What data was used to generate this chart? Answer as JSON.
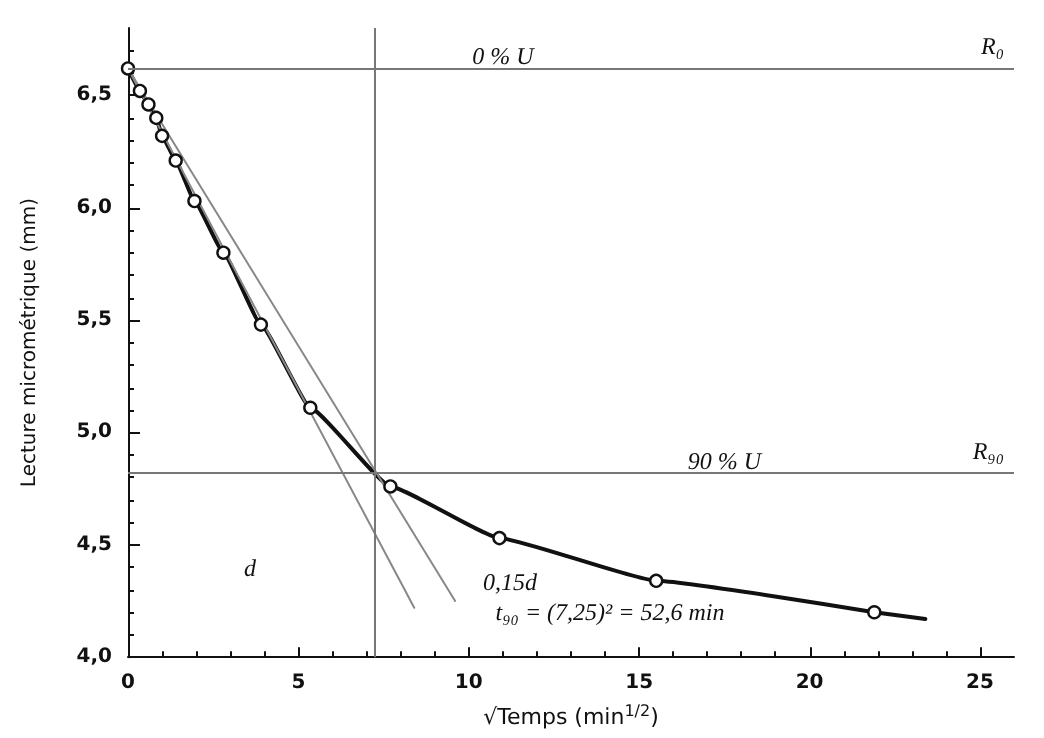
{
  "chart_data": {
    "type": "line",
    "xlabel": "√Temps (min$^{1/2}$)",
    "ylabel": "Lecture micrométrique (mm)",
    "xlim": [
      0,
      26
    ],
    "xticks": [
      0,
      5,
      10,
      15,
      20,
      25
    ],
    "ylim": [
      4,
      6.8
    ],
    "yticks": [
      {
        "value": 4,
        "label": "4,0"
      },
      {
        "value": 4.5,
        "label": "4,5"
      },
      {
        "value": 5,
        "label": "5,0"
      },
      {
        "value": 5.5,
        "label": "5,5"
      },
      {
        "value": 6,
        "label": "6,0"
      },
      {
        "value": 6.5,
        "label": "6,5"
      }
    ],
    "series": [
      {
        "color": "#111111",
        "marker": "circle",
        "x": [
          0,
          0.35,
          0.6,
          0.83,
          1.0,
          1.4,
          1.95,
          2.8,
          3.9,
          5.35,
          7.7,
          10.9,
          15.5,
          21.9
        ],
        "values": [
          6.62,
          6.52,
          6.46,
          6.4,
          6.32,
          6.21,
          6.03,
          5.8,
          5.48,
          5.11,
          4.76,
          4.53,
          4.34,
          4.2
        ]
      },
      {
        "color": "#111111",
        "marker": "none",
        "x": [
          21.9,
          23.4
        ],
        "values": [
          4.2,
          4.17
        ]
      },
      {
        "color": "#888888",
        "marker": "none",
        "x": [
          0,
          8.4
        ],
        "values": [
          6.62,
          4.22
        ]
      },
      {
        "color": "#888888",
        "marker": "none",
        "x": [
          0,
          9.6
        ],
        "values": [
          6.62,
          4.25
        ]
      }
    ],
    "ref_lines": [
      {
        "axis": "y",
        "value": 6.62,
        "label": "R₀"
      },
      {
        "axis": "y",
        "value": 4.82,
        "label": "R₉₀"
      },
      {
        "axis": "x",
        "value": 7.25
      }
    ],
    "annotations": [
      {
        "text": "0 % U",
        "x": 11,
        "y": 6.62
      },
      {
        "text": "90 % U",
        "x": 17.5,
        "y": 4.82
      },
      "d",
      "0,15d",
      "t₉₀ = (7,25)² = 52,6 min"
    ]
  }
}
